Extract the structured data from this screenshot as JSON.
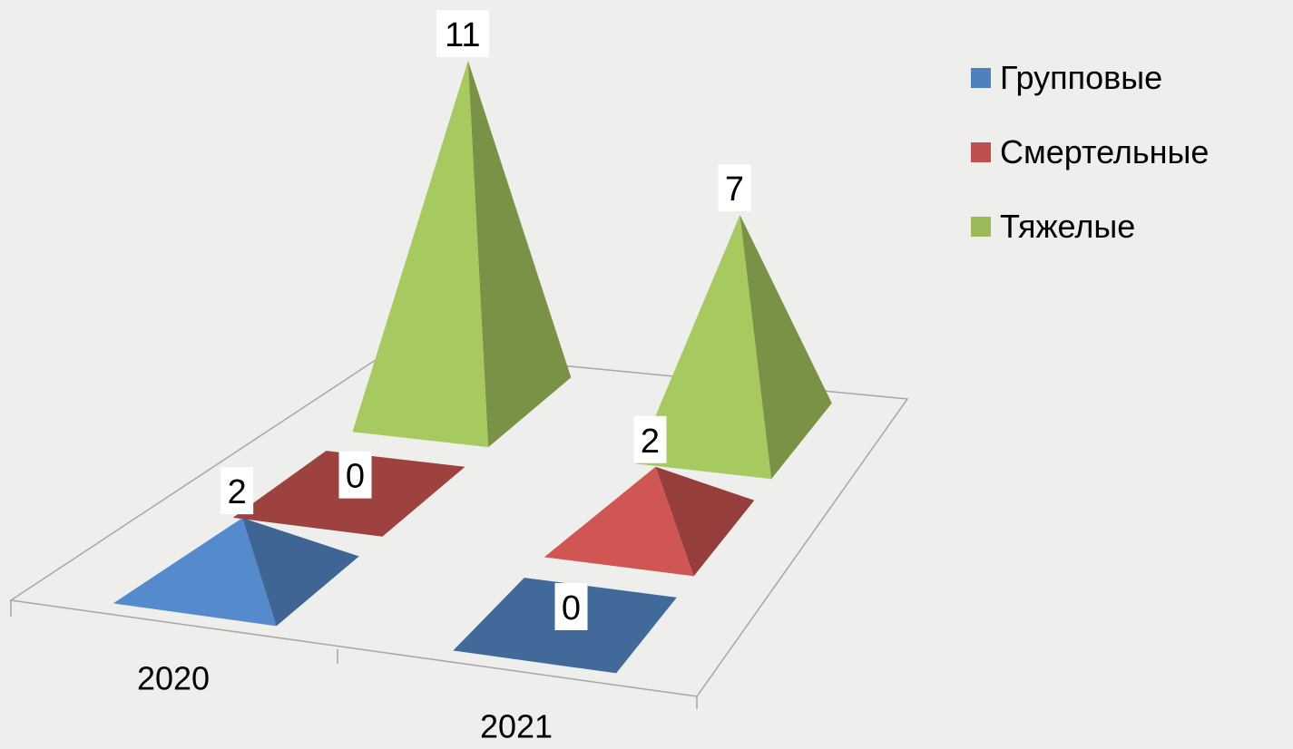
{
  "chart_data": {
    "type": "3d-pyramid-bar",
    "categories": [
      "2020",
      "2021"
    ],
    "series": [
      {
        "name": "Групповые",
        "values": [
          2,
          0
        ],
        "color": "#4f81bd"
      },
      {
        "name": "Смертельные",
        "values": [
          0,
          2
        ],
        "color": "#c0504d"
      },
      {
        "name": "Тяжелые",
        "values": [
          11,
          7
        ],
        "color": "#9bbb59"
      }
    ],
    "data_labels": true,
    "legend": "right",
    "title": "",
    "xlabel": "",
    "ylabel": "",
    "grid": false
  }
}
